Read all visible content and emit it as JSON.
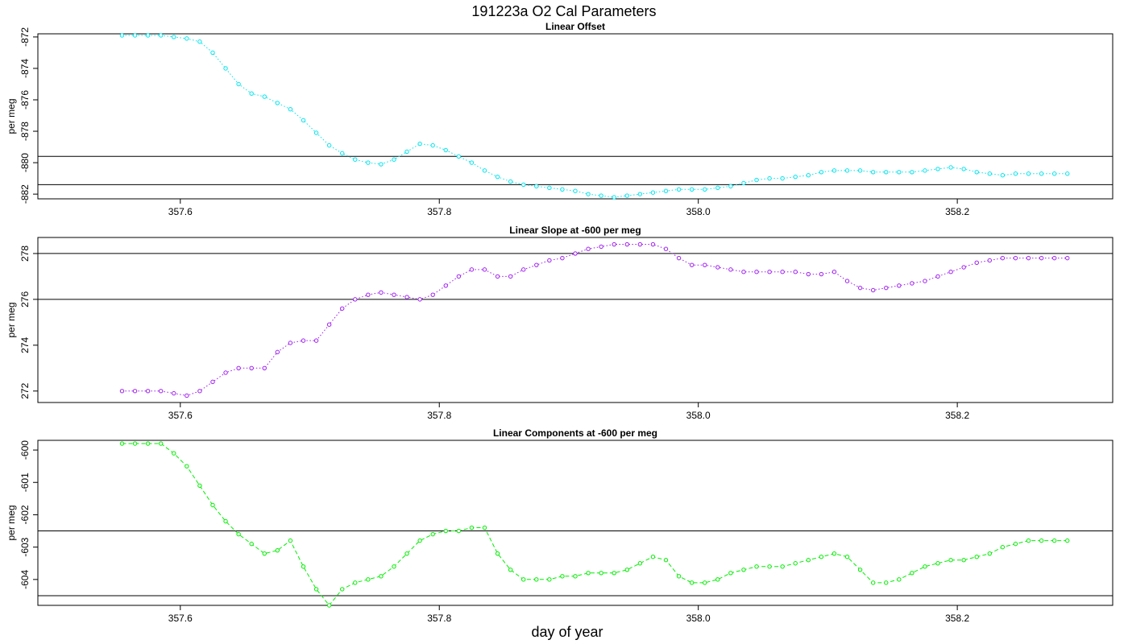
{
  "figure": {
    "title": "191223a   O2 Cal Parameters",
    "xlabel": "day of year"
  },
  "chart_data": [
    {
      "type": "line",
      "title": "Linear Offset",
      "xlabel": "day of year",
      "ylabel": "per meg",
      "xlim": [
        357.49,
        358.32
      ],
      "ylim": [
        -882.3,
        -871.8
      ],
      "xticks": [
        "357.6",
        "357.8",
        "358.0",
        "358.2"
      ],
      "yticks": [
        "-872",
        "-874",
        "-876",
        "-878",
        "-880",
        "-882"
      ],
      "color": "#00e5ee",
      "marker": "circle-open",
      "linestyle": "dotted",
      "hlines": [
        -879.6,
        -881.4
      ],
      "series": [
        {
          "x": [
            357.555,
            357.565,
            357.575,
            357.585,
            357.595,
            357.605,
            357.615,
            357.625,
            357.635,
            357.645,
            357.655,
            357.665,
            357.675,
            357.685,
            357.695,
            357.705,
            357.715,
            357.725,
            357.735,
            357.745,
            357.755,
            357.765,
            357.775,
            357.785,
            357.795,
            357.805,
            357.815,
            357.825,
            357.835,
            357.845,
            357.855,
            357.865,
            357.875,
            357.885,
            357.895,
            357.905,
            357.915,
            357.925,
            357.935,
            357.945,
            357.955,
            357.965,
            357.975,
            357.985,
            357.995,
            358.005,
            358.015,
            358.025,
            358.035,
            358.045,
            358.055,
            358.065,
            358.075,
            358.085,
            358.095,
            358.105,
            358.115,
            358.125,
            358.135,
            358.145,
            358.155,
            358.165,
            358.175,
            358.185,
            358.195,
            358.205,
            358.215,
            358.225,
            358.235,
            358.245,
            358.255,
            358.265,
            358.275,
            358.285
          ],
          "y": [
            -871.9,
            -871.9,
            -871.9,
            -871.9,
            -872.0,
            -872.1,
            -872.3,
            -873.0,
            -874.0,
            -875.0,
            -875.6,
            -875.8,
            -876.2,
            -876.6,
            -877.3,
            -878.1,
            -878.9,
            -879.4,
            -879.8,
            -880.0,
            -880.1,
            -879.8,
            -879.3,
            -878.8,
            -878.9,
            -879.2,
            -879.6,
            -880.0,
            -880.5,
            -880.9,
            -881.2,
            -881.4,
            -881.5,
            -881.6,
            -881.7,
            -881.8,
            -882.0,
            -882.1,
            -882.2,
            -882.1,
            -882.0,
            -881.9,
            -881.8,
            -881.7,
            -881.7,
            -881.7,
            -881.6,
            -881.5,
            -881.3,
            -881.1,
            -881.0,
            -881.0,
            -880.9,
            -880.8,
            -880.6,
            -880.5,
            -880.5,
            -880.5,
            -880.6,
            -880.6,
            -880.6,
            -880.6,
            -880.5,
            -880.4,
            -880.3,
            -880.4,
            -880.6,
            -880.7,
            -880.8,
            -880.7,
            -880.7,
            -880.7,
            -880.7,
            -880.7
          ]
        }
      ]
    },
    {
      "type": "line",
      "title": "Linear Slope at -600 per meg",
      "xlabel": "day of year",
      "ylabel": "per meg",
      "xlim": [
        357.49,
        358.32
      ],
      "ylim": [
        271.5,
        278.7
      ],
      "xticks": [
        "357.6",
        "357.8",
        "358.0",
        "358.2"
      ],
      "yticks": [
        "272",
        "274",
        "276",
        "278"
      ],
      "color": "#a020f0",
      "marker": "circle-open",
      "linestyle": "dotted",
      "hlines": [
        278.0,
        276.0
      ],
      "series": [
        {
          "x": [
            357.555,
            357.565,
            357.575,
            357.585,
            357.595,
            357.605,
            357.615,
            357.625,
            357.635,
            357.645,
            357.655,
            357.665,
            357.675,
            357.685,
            357.695,
            357.705,
            357.715,
            357.725,
            357.735,
            357.745,
            357.755,
            357.765,
            357.775,
            357.785,
            357.795,
            357.805,
            357.815,
            357.825,
            357.835,
            357.845,
            357.855,
            357.865,
            357.875,
            357.885,
            357.895,
            357.905,
            357.915,
            357.925,
            357.935,
            357.945,
            357.955,
            357.965,
            357.975,
            357.985,
            357.995,
            358.005,
            358.015,
            358.025,
            358.035,
            358.045,
            358.055,
            358.065,
            358.075,
            358.085,
            358.095,
            358.105,
            358.115,
            358.125,
            358.135,
            358.145,
            358.155,
            358.165,
            358.175,
            358.185,
            358.195,
            358.205,
            358.215,
            358.225,
            358.235,
            358.245,
            358.255,
            358.265,
            358.275,
            358.285
          ],
          "y": [
            272.0,
            272.0,
            272.0,
            272.0,
            271.9,
            271.8,
            272.0,
            272.4,
            272.8,
            273.0,
            273.0,
            273.0,
            273.7,
            274.1,
            274.2,
            274.2,
            274.9,
            275.6,
            276.0,
            276.2,
            276.3,
            276.2,
            276.1,
            276.0,
            276.2,
            276.6,
            277.0,
            277.3,
            277.3,
            277.0,
            277.0,
            277.3,
            277.5,
            277.7,
            277.8,
            278.0,
            278.2,
            278.3,
            278.4,
            278.4,
            278.4,
            278.4,
            278.2,
            277.8,
            277.5,
            277.5,
            277.4,
            277.3,
            277.2,
            277.2,
            277.2,
            277.2,
            277.2,
            277.1,
            277.1,
            277.2,
            276.8,
            276.5,
            276.4,
            276.5,
            276.6,
            276.7,
            276.8,
            277.0,
            277.2,
            277.4,
            277.6,
            277.7,
            277.8,
            277.8,
            277.8,
            277.8,
            277.8,
            277.8
          ]
        }
      ]
    },
    {
      "type": "line",
      "title": "Linear Components at -600 per meg",
      "xlabel": "day of year",
      "ylabel": "per meg",
      "xlim": [
        357.49,
        358.32
      ],
      "ylim": [
        -604.8,
        -599.7
      ],
      "xticks": [
        "357.6",
        "357.8",
        "358.0",
        "358.2"
      ],
      "yticks": [
        "-600",
        "-601",
        "-602",
        "-603",
        "-604"
      ],
      "color": "#00ee00",
      "marker": "circle-open",
      "linestyle": "dashed",
      "hlines": [
        -602.5,
        -604.5
      ],
      "series": [
        {
          "x": [
            357.555,
            357.565,
            357.575,
            357.585,
            357.595,
            357.605,
            357.615,
            357.625,
            357.635,
            357.645,
            357.655,
            357.665,
            357.675,
            357.685,
            357.695,
            357.705,
            357.715,
            357.725,
            357.735,
            357.745,
            357.755,
            357.765,
            357.775,
            357.785,
            357.795,
            357.805,
            357.815,
            357.825,
            357.835,
            357.845,
            357.855,
            357.865,
            357.875,
            357.885,
            357.895,
            357.905,
            357.915,
            357.925,
            357.935,
            357.945,
            357.955,
            357.965,
            357.975,
            357.985,
            357.995,
            358.005,
            358.015,
            358.025,
            358.035,
            358.045,
            358.055,
            358.065,
            358.075,
            358.085,
            358.095,
            358.105,
            358.115,
            358.125,
            358.135,
            358.145,
            358.155,
            358.165,
            358.175,
            358.185,
            358.195,
            358.205,
            358.215,
            358.225,
            358.235,
            358.245,
            358.255,
            358.265,
            358.275,
            358.285
          ],
          "y": [
            -599.8,
            -599.8,
            -599.8,
            -599.8,
            -600.1,
            -600.5,
            -601.1,
            -601.7,
            -602.2,
            -602.6,
            -602.9,
            -603.2,
            -603.1,
            -602.8,
            -603.6,
            -604.3,
            -604.8,
            -604.3,
            -604.1,
            -604.0,
            -603.9,
            -603.6,
            -603.2,
            -602.8,
            -602.6,
            -602.5,
            -602.5,
            -602.4,
            -602.4,
            -603.2,
            -603.7,
            -604.0,
            -604.0,
            -604.0,
            -603.9,
            -603.9,
            -603.8,
            -603.8,
            -603.8,
            -603.7,
            -603.5,
            -603.3,
            -603.4,
            -603.9,
            -604.1,
            -604.1,
            -604.0,
            -603.8,
            -603.7,
            -603.6,
            -603.6,
            -603.6,
            -603.5,
            -603.4,
            -603.3,
            -603.2,
            -603.3,
            -603.7,
            -604.1,
            -604.1,
            -604.0,
            -603.8,
            -603.6,
            -603.5,
            -603.4,
            -603.4,
            -603.3,
            -603.2,
            -603.0,
            -602.9,
            -602.8,
            -602.8,
            -602.8,
            -602.8
          ]
        }
      ]
    }
  ]
}
